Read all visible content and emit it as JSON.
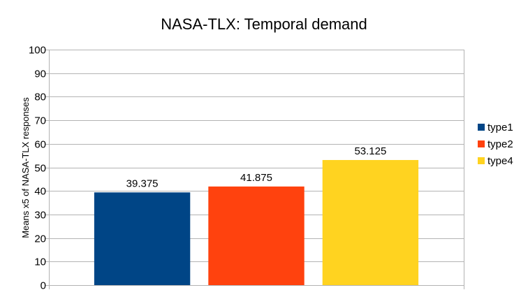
{
  "chart_data": {
    "type": "bar",
    "title": "NASA-TLX: Temporal demand",
    "xlabel": "",
    "ylabel": "Means x5 of NASA-TLX responses",
    "ylim": [
      0,
      100
    ],
    "yticks": [
      0,
      10,
      20,
      30,
      40,
      50,
      60,
      70,
      80,
      90,
      100
    ],
    "grid": true,
    "legend_position": "right",
    "series": [
      {
        "name": "type1",
        "value": 39.375,
        "label": "39.375",
        "color": "#004586"
      },
      {
        "name": "type2",
        "value": 41.875,
        "label": "41.875",
        "color": "#ff420e"
      },
      {
        "name": "type4",
        "value": 53.125,
        "label": "53.125",
        "color": "#ffd320"
      }
    ]
  }
}
